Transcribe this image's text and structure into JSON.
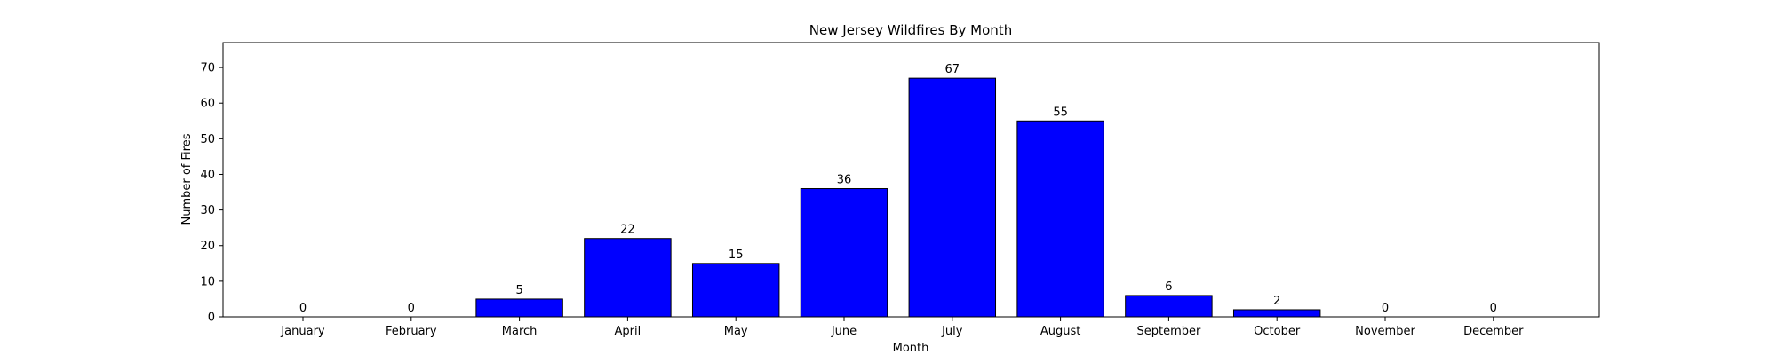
{
  "chart_data": {
    "type": "bar",
    "title": "New Jersey Wildfires By Month",
    "xlabel": "Month",
    "ylabel": "Number of Fires",
    "categories": [
      "January",
      "February",
      "March",
      "April",
      "May",
      "June",
      "July",
      "August",
      "September",
      "October",
      "November",
      "December"
    ],
    "values": [
      0,
      0,
      5,
      22,
      15,
      36,
      67,
      55,
      6,
      2,
      0,
      0
    ],
    "ylim": [
      0,
      77
    ],
    "yticks": [
      0,
      10,
      20,
      30,
      40,
      50,
      60,
      70
    ],
    "grid": false,
    "bar_color": "#0000ff",
    "edge_color": "#000000"
  }
}
